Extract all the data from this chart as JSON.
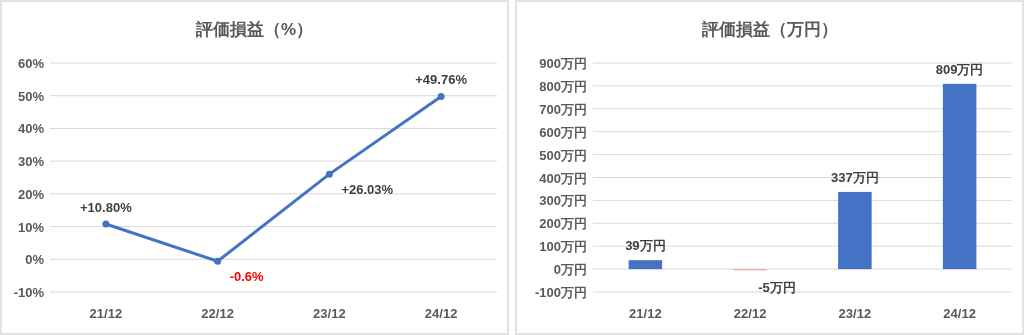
{
  "chart_data": [
    {
      "type": "line",
      "title": "評価損益（%）",
      "categories": [
        "21/12",
        "22/12",
        "23/12",
        "24/12"
      ],
      "values": [
        10.8,
        -0.6,
        26.03,
        49.76
      ],
      "value_labels": [
        "+10.80%",
        "-0.6%",
        "+26.03%",
        "+49.76%"
      ],
      "color": "#4472c4",
      "marker": "circle",
      "ylim": [
        -10,
        60
      ],
      "yticks": [
        {
          "value": -10,
          "label": "-10%"
        },
        {
          "value": 0,
          "label": "0%"
        },
        {
          "value": 10,
          "label": "10%"
        },
        {
          "value": 20,
          "label": "20%"
        },
        {
          "value": 30,
          "label": "30%"
        },
        {
          "value": 40,
          "label": "40%"
        },
        {
          "value": 50,
          "label": "50%"
        },
        {
          "value": 60,
          "label": "60%"
        }
      ],
      "grid": "y"
    },
    {
      "type": "bar",
      "title": "評価損益（万円）",
      "categories": [
        "21/12",
        "22/12",
        "23/12",
        "24/12"
      ],
      "values": [
        39,
        -5,
        337,
        809
      ],
      "value_labels": [
        "39万円",
        "-5万円",
        "337万円",
        "809万円"
      ],
      "colors": [
        "#4472c4",
        "#f4a09c",
        "#4472c4",
        "#4472c4"
      ],
      "ylim": [
        -100,
        900
      ],
      "yticks": [
        {
          "value": -100,
          "label": "-100万円"
        },
        {
          "value": 0,
          "label": "0万円"
        },
        {
          "value": 100,
          "label": "100万円"
        },
        {
          "value": 200,
          "label": "200万円"
        },
        {
          "value": 300,
          "label": "300万円"
        },
        {
          "value": 400,
          "label": "400万円"
        },
        {
          "value": 500,
          "label": "500万円"
        },
        {
          "value": 600,
          "label": "600万円"
        },
        {
          "value": 700,
          "label": "700万円"
        },
        {
          "value": 800,
          "label": "800万円"
        },
        {
          "value": 900,
          "label": "900万円"
        }
      ],
      "grid": "y"
    }
  ]
}
